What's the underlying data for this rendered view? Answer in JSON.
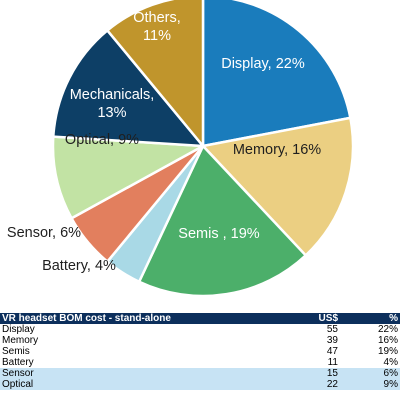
{
  "chart_data": {
    "type": "pie",
    "start_angle_deg": 0,
    "direction": "clockwise",
    "slices": [
      {
        "label": "Display, 22%",
        "value": 22,
        "color": "#1a7cbc",
        "text_color": "#ffffff"
      },
      {
        "label": "Memory, 16%",
        "value": 16,
        "color": "#ebcf82",
        "text_color": "#1f1f1f"
      },
      {
        "label": "Semis , 19%",
        "value": 19,
        "color": "#4caf6a",
        "text_color": "#ffffff"
      },
      {
        "label": "Battery, 4%",
        "value": 4,
        "color": "#a9d9e6",
        "text_color": "#1f1f1f"
      },
      {
        "label": "Sensor, 6%",
        "value": 6,
        "color": "#e27f5e",
        "text_color": "#1f1f1f"
      },
      {
        "label": "Optical, 9%",
        "value": 9,
        "color": "#c2e3a4",
        "text_color": "#1f1f1f"
      },
      {
        "label": "Mechanicals,\n13%",
        "value": 13,
        "color": "#0d3f66",
        "text_color": "#ffffff"
      },
      {
        "label": "Others,\n11%",
        "value": 11,
        "color": "#c0952c",
        "text_color": "#ffffff"
      }
    ]
  },
  "table": {
    "title": "VR headset BOM cost - stand-alone",
    "col_usd": "US$",
    "col_pct": "%",
    "rows": [
      {
        "name": "Display",
        "usd": "55",
        "pct": "22%",
        "highlight": false
      },
      {
        "name": "Memory",
        "usd": "39",
        "pct": "16%",
        "highlight": false
      },
      {
        "name": "Semis",
        "usd": "47",
        "pct": "19%",
        "highlight": false
      },
      {
        "name": "Battery",
        "usd": "11",
        "pct": "4%",
        "highlight": false
      },
      {
        "name": "Sensor",
        "usd": "15",
        "pct": "6%",
        "highlight": true
      },
      {
        "name": "Optical",
        "usd": "22",
        "pct": "9%",
        "highlight": true
      }
    ]
  }
}
